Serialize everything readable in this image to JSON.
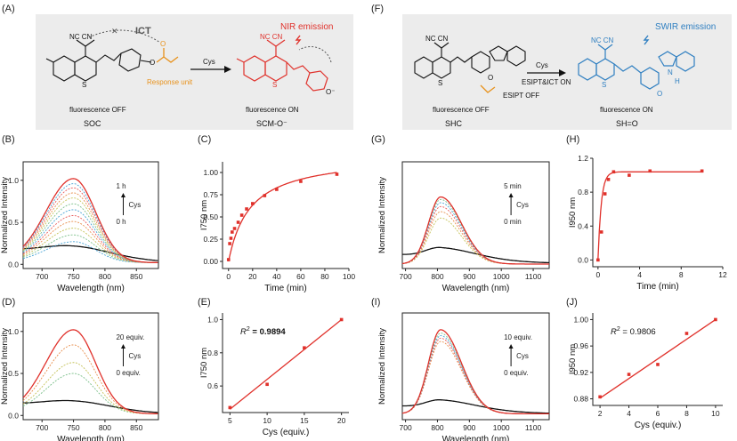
{
  "colors": {
    "red": "#e0312b",
    "blue": "#2f7fc1",
    "orange": "#e8921c",
    "black": "#111111",
    "scheme_bg": "#ececec",
    "intermediates": [
      "#4aa5d6",
      "#5db7a8",
      "#7cc08a",
      "#a2c46a",
      "#c6c35a",
      "#e0b04d",
      "#e88f4d",
      "#e87258",
      "#e85a5a",
      "#e24d6b"
    ]
  },
  "schemes": {
    "A": {
      "panel_label": "(A)",
      "left_cn": "NC   CN",
      "ict_label": "ICT",
      "cross": "✕",
      "response_unit": "Response unit",
      "left_state": "fluorescence OFF",
      "left_name": "SOC",
      "reagent": "Cys",
      "emission": "NIR emission",
      "right_state": "fluorescence ON",
      "right_name": "SCM-O⁻",
      "s_atom": "S",
      "o_minus": "O⁻",
      "o_atom": "O"
    },
    "F": {
      "panel_label": "(F)",
      "left_state": "fluorescence OFF",
      "left_name": "SHC",
      "esipt_off": "ESIPT OFF",
      "reagent": "Cys",
      "esipt_on": "ESIPT&ICT ON",
      "emission": "SWIR emission",
      "right_state": "fluorescence ON",
      "right_name": "SH=O",
      "cn": "NC   CN",
      "s_atom": "S",
      "n_atom": "N",
      "h_atom": "H",
      "o_atom": "O"
    }
  },
  "chart_data": [
    {
      "id": "B",
      "panel_label": "(B)",
      "type": "line",
      "xlabel": "Wavelength  (nm)",
      "ylabel": "Normalized Intensity",
      "xlim": [
        670,
        885
      ],
      "ylim": [
        -0.05,
        1.22
      ],
      "xticks": [
        700,
        750,
        800,
        850
      ],
      "yticks": [
        0.0,
        0.5,
        1.0
      ],
      "annotation": {
        "top": "1 h",
        "reagent": "Cys",
        "bottom": "0 h"
      },
      "peak": 750,
      "sigma_left": 44,
      "sigma_right": 35,
      "series": [
        {
          "name": "0 h",
          "color": "#111111",
          "amps": [
            0.25
          ],
          "style": "black"
        },
        {
          "name": "intermediate",
          "amps": [
            0.25,
            0.33,
            0.41,
            0.49,
            0.56,
            0.63,
            0.7,
            0.77,
            0.83,
            0.89,
            0.94
          ],
          "style": "dashed"
        },
        {
          "name": "1 h",
          "color": "#e0312b",
          "amps": [
            1.0
          ],
          "style": "red"
        }
      ]
    },
    {
      "id": "C",
      "panel_label": "(C)",
      "type": "scatter",
      "xlabel": "Time  (min)",
      "ylabel": "I750 nm",
      "xlim": [
        -5,
        100
      ],
      "ylim": [
        -0.08,
        1.12
      ],
      "xticks": [
        0,
        20,
        40,
        60,
        80,
        100
      ],
      "yticks": [
        0.0,
        0.25,
        0.5,
        0.75,
        1.0
      ],
      "ytick_labels": [
        "0.00",
        "0.25",
        "0.50",
        "0.75",
        "1.00"
      ],
      "x": [
        0,
        1,
        2,
        3,
        5,
        8,
        11,
        15,
        20,
        30,
        40,
        60,
        90
      ],
      "y": [
        0.02,
        0.2,
        0.26,
        0.33,
        0.37,
        0.44,
        0.52,
        0.59,
        0.65,
        0.74,
        0.81,
        0.9,
        0.98
      ],
      "fit": {
        "model": "a*x/(b+x)",
        "a": 1.2,
        "b": 18
      }
    },
    {
      "id": "D",
      "panel_label": "(D)",
      "type": "line",
      "xlabel": "Wavelength  (nm)",
      "ylabel": "Normalized Intensity",
      "xlim": [
        670,
        885
      ],
      "ylim": [
        -0.05,
        1.22
      ],
      "xticks": [
        700,
        750,
        800,
        850
      ],
      "yticks": [
        0.0,
        0.5,
        1.0
      ],
      "annotation": {
        "top": "20 equiv.",
        "reagent": "Cys",
        "bottom": "0 equiv."
      },
      "peak": 750,
      "sigma_left": 44,
      "sigma_right": 35,
      "series": [
        {
          "name": "0 equiv.",
          "color": "#111111",
          "amps": [
            0.2
          ],
          "style": "black"
        },
        {
          "name": "intermediate",
          "amps": [
            0.48,
            0.61,
            0.82
          ],
          "style": "dashed"
        },
        {
          "name": "20 equiv.",
          "color": "#e0312b",
          "amps": [
            1.0
          ],
          "style": "red"
        }
      ]
    },
    {
      "id": "E",
      "panel_label": "(E)",
      "type": "scatter",
      "xlabel": "Cys (equiv.)",
      "ylabel": "I750 nm",
      "xlim": [
        4,
        21
      ],
      "ylim": [
        0.44,
        1.04
      ],
      "xticks": [
        5,
        10,
        15,
        20
      ],
      "yticks": [
        0.6,
        0.8,
        1.0
      ],
      "ytick_labels": [
        "0.6",
        "0.8",
        "1.0"
      ],
      "x": [
        5,
        10,
        15,
        20
      ],
      "y": [
        0.47,
        0.61,
        0.83,
        1.0
      ],
      "r2_label": "R",
      "r2_sup": "2",
      "r2_value": " = 0.9894",
      "fit": {
        "model": "linear",
        "x0": 5,
        "y0": 0.46,
        "x1": 20,
        "y1": 1.0
      }
    },
    {
      "id": "G",
      "panel_label": "(G)",
      "type": "line",
      "xlabel": "Wavelength  (nm)",
      "ylabel": "Normalized Intensity",
      "xlim": [
        690,
        1150
      ],
      "ylim": [
        -0.05,
        1.62
      ],
      "xticks": [
        700,
        800,
        900,
        1000,
        1100
      ],
      "yticks": [],
      "annotation": {
        "top": "5 min",
        "reagent": "Cys",
        "bottom": "0 min"
      },
      "peak": 810,
      "sigma_left": 38,
      "sigma_right": 65,
      "series": [
        {
          "name": "0 min",
          "color": "#111111",
          "amps": [
            0.3
          ],
          "style": "black"
        },
        {
          "name": "intermediate",
          "amps": [
            0.72,
            0.82,
            0.9,
            0.96,
            1.01
          ],
          "style": "dashed"
        },
        {
          "name": "5 min",
          "color": "#e0312b",
          "amps": [
            1.05
          ],
          "style": "red"
        }
      ]
    },
    {
      "id": "H",
      "panel_label": "(H)",
      "type": "scatter",
      "xlabel": "Time  (min)",
      "ylabel": "I950 nm",
      "xlim": [
        -0.5,
        12
      ],
      "ylim": [
        -0.08,
        1.2
      ],
      "xticks": [
        0,
        4,
        8,
        12
      ],
      "yticks": [
        0.0,
        0.4,
        0.8,
        1.2
      ],
      "ytick_labels": [
        "0.0",
        "0.4",
        "0.8",
        "1.2"
      ],
      "x": [
        0,
        0.33,
        0.67,
        1.0,
        1.5,
        3,
        5,
        10
      ],
      "y": [
        0.0,
        0.33,
        0.78,
        0.95,
        1.04,
        1.0,
        1.05,
        1.05
      ],
      "fit": {
        "model": "exp",
        "a": 1.04,
        "k": 3.2
      }
    },
    {
      "id": "I",
      "panel_label": "(I)",
      "type": "line",
      "xlabel": "Wavelength  (nm)",
      "ylabel": "Normalized Intensity",
      "xlim": [
        690,
        1150
      ],
      "ylim": [
        -0.05,
        1.22
      ],
      "xticks": [
        700,
        800,
        900,
        1000,
        1100
      ],
      "yticks": [],
      "annotation": {
        "top": "10  equiv.",
        "reagent": "Cys",
        "bottom": "0  equiv."
      },
      "peak": 810,
      "sigma_left": 38,
      "sigma_right": 65,
      "series": [
        {
          "name": "0 equiv.",
          "color": "#111111",
          "amps": [
            0.2
          ],
          "style": "black"
        },
        {
          "name": "intermediate",
          "amps": [
            0.86,
            0.9,
            0.93,
            0.96
          ],
          "style": "dashed"
        },
        {
          "name": "10 equiv.",
          "color": "#e0312b",
          "amps": [
            1.0
          ],
          "style": "red"
        }
      ]
    },
    {
      "id": "J",
      "panel_label": "(J)",
      "type": "scatter",
      "xlabel": "Cys (equiv.)",
      "ylabel": "I950 nm",
      "xlim": [
        1.5,
        10.5
      ],
      "ylim": [
        0.87,
        1.01
      ],
      "xticks": [
        2,
        4,
        6,
        8,
        10
      ],
      "yticks": [
        0.88,
        0.92,
        0.96,
        1.0
      ],
      "ytick_labels": [
        "0.88",
        "0.92",
        "0.96",
        "1.00"
      ],
      "x": [
        2,
        4,
        6,
        8,
        10
      ],
      "y": [
        0.883,
        0.917,
        0.932,
        0.979,
        1.0
      ],
      "r2_label": "R",
      "r2_sup": "2",
      "r2_value": " = 0.9806",
      "fit": {
        "model": "linear",
        "x0": 2,
        "y0": 0.881,
        "x1": 10,
        "y1": 1.0
      }
    }
  ]
}
